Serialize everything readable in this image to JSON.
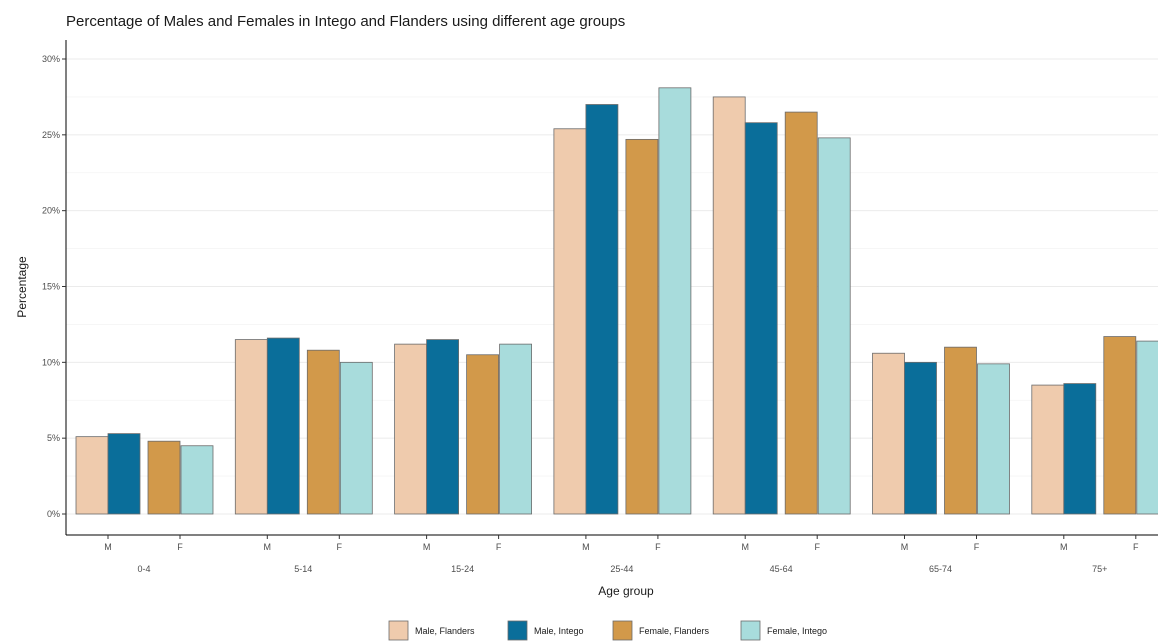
{
  "chart_data": {
    "type": "bar",
    "title": "Percentage of Males and Females in Intego and Flanders using different age groups",
    "xlabel": "Age group",
    "ylabel": "Percentage",
    "ylim": [
      0,
      30
    ],
    "yticks": [
      "0%",
      "5%",
      "10%",
      "15%",
      "20%",
      "25%",
      "30%"
    ],
    "categories": [
      "0-4",
      "5-14",
      "15-24",
      "25-44",
      "45-64",
      "65-74",
      "75+"
    ],
    "sublabels": [
      "M",
      "F"
    ],
    "grid": true,
    "legend_position": "bottom",
    "series": [
      {
        "name": "Male, Flanders",
        "color": "#EFCBAD",
        "sex": "M",
        "values": [
          5.1,
          11.5,
          11.2,
          25.4,
          27.5,
          10.6,
          8.5
        ]
      },
      {
        "name": "Male, Intego",
        "color": "#0A6E9A",
        "sex": "M",
        "values": [
          5.3,
          11.6,
          11.5,
          27.0,
          25.8,
          10.0,
          8.6
        ]
      },
      {
        "name": "Female, Flanders",
        "color": "#D2994A",
        "sex": "F",
        "values": [
          4.8,
          10.8,
          10.5,
          24.7,
          26.5,
          11.0,
          11.7
        ]
      },
      {
        "name": "Female, Intego",
        "color": "#A8DCDC",
        "sex": "F",
        "values": [
          4.5,
          10.0,
          11.2,
          28.1,
          24.8,
          9.9,
          11.4
        ]
      }
    ]
  }
}
